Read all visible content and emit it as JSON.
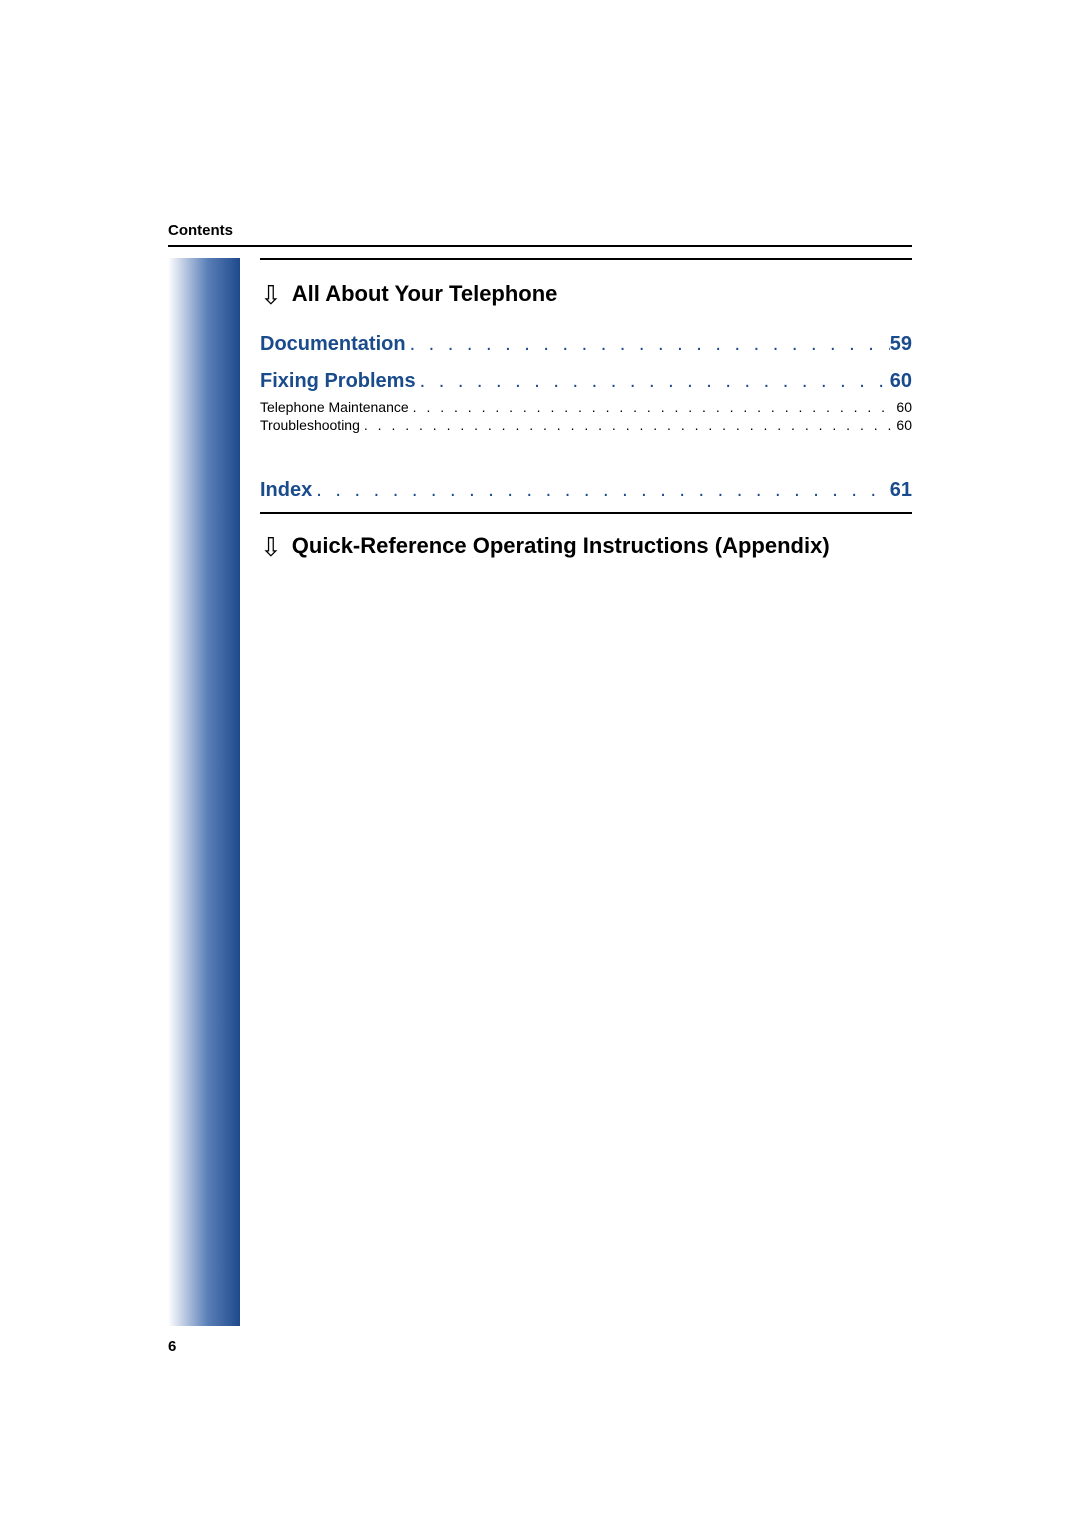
{
  "header": {
    "label": "Contents"
  },
  "sections": {
    "section1": {
      "title": "All About Your Telephone"
    },
    "section2": {
      "title": "Quick-Reference Operating Instructions (Appendix)"
    }
  },
  "toc": {
    "documentation": {
      "label": "Documentation",
      "page": "59"
    },
    "fixing_problems": {
      "label": "Fixing Problems",
      "page": "60",
      "children": {
        "maintenance": {
          "label": "Telephone Maintenance",
          "page": "60"
        },
        "troubleshooting": {
          "label": "Troubleshooting",
          "page": "60"
        }
      }
    },
    "index": {
      "label": "Index",
      "page": "61"
    }
  },
  "dots_major": ". . . . . . . . . . . . . . . . . . . . . . . . . . . . . . . . . . . . . . . . . . . . . . . . . . . . . . . . . . . .",
  "dots_minor": ". . . . . . . . . . . . . . . . . . . . . . . . . . . . . . . . . . . . . . . . . . . . . . . . . . . . . . . . . . . . . . . . . . . . . . . . . . . . . . . .",
  "page_number": "6",
  "colors": {
    "accent": "#1a4b8c",
    "text": "#000000",
    "gradient_start": "#ffffff",
    "gradient_mid": "#5a7fb8",
    "gradient_end": "#1e4a8c"
  }
}
